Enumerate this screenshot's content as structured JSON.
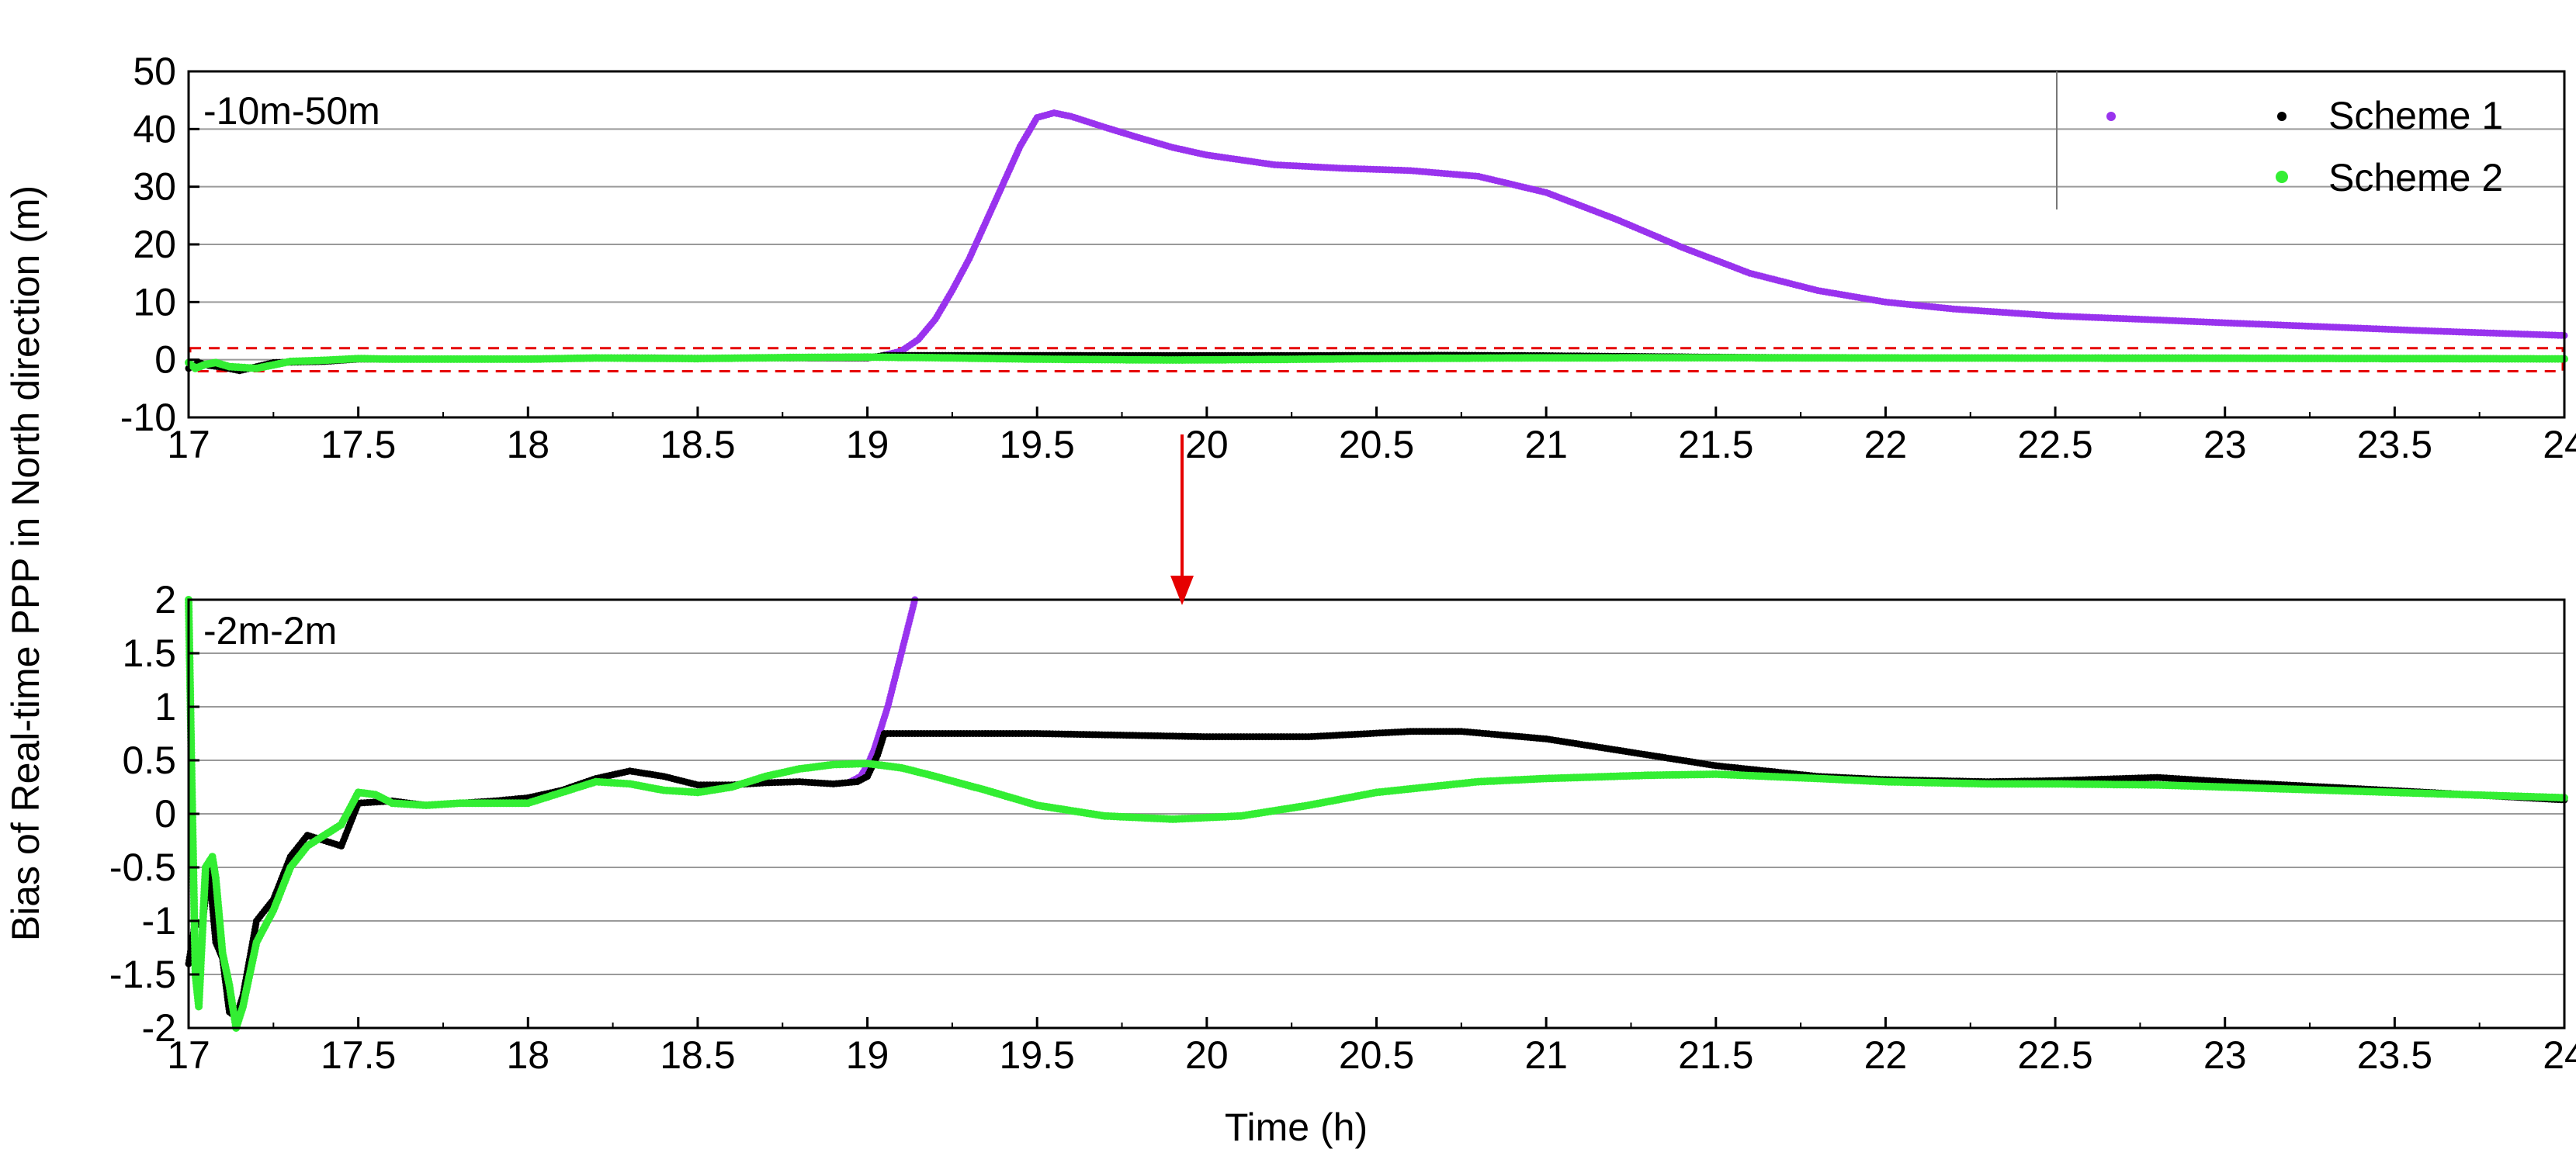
{
  "colors": {
    "scheme1": "#000000",
    "scheme2": "#33ee33",
    "scheme0": "#9933ee",
    "grid": "#9a9a9a",
    "box": "#e60000",
    "arrow": "#e60000"
  },
  "shared": {
    "ylabel": "Bias of Real-time PPP in North direction (m)",
    "xlabel": "Time (h)",
    "legend": [
      "Scheme 1",
      "Scheme 2"
    ],
    "legend_position": "top-right of upper panel"
  },
  "chart_data": [
    {
      "type": "scatter",
      "annotation": "-10m-50m",
      "xlim": [
        17,
        24
      ],
      "ylim": [
        -10,
        50
      ],
      "xticks": [
        17,
        17.5,
        18,
        18.5,
        19,
        19.5,
        20,
        20.5,
        21,
        21.5,
        22,
        22.5,
        23,
        23.5,
        24
      ],
      "yticks": [
        -10,
        0,
        10,
        20,
        30,
        40,
        50
      ],
      "grid": true,
      "zoom_box_y": [
        -2,
        2
      ],
      "series": [
        {
          "name": "",
          "color": "#9933ee",
          "x": [
            19.05,
            19.1,
            19.15,
            19.2,
            19.25,
            19.3,
            19.35,
            19.4,
            19.45,
            19.5,
            19.55,
            19.6,
            19.7,
            19.8,
            19.9,
            20.0,
            20.2,
            20.4,
            20.6,
            20.8,
            21.0,
            21.2,
            21.4,
            21.6,
            21.8,
            22.0,
            22.2,
            22.5,
            22.8,
            23.0,
            23.3,
            23.6,
            24.0
          ],
          "y": [
            0.8,
            1.5,
            3.5,
            7.0,
            12.0,
            17.5,
            24.0,
            30.5,
            37.0,
            42.0,
            42.8,
            42.2,
            40.3,
            38.5,
            36.8,
            35.5,
            33.8,
            33.2,
            32.8,
            31.8,
            29.0,
            24.5,
            19.5,
            15.0,
            12.0,
            10.0,
            8.8,
            7.6,
            6.9,
            6.4,
            5.7,
            5.0,
            4.2
          ]
        },
        {
          "name": "Scheme 1",
          "color": "#000000",
          "x": [
            17.0,
            17.03,
            17.06,
            17.1,
            17.15,
            17.25,
            17.4,
            17.5,
            17.6,
            17.8,
            18.0,
            18.3,
            18.5,
            18.8,
            19.0,
            19.05,
            19.5,
            20.0,
            20.5,
            20.7,
            21.0,
            21.5,
            22.0,
            22.5,
            22.8,
            23.0,
            23.5,
            24.0
          ],
          "y": [
            -1.5,
            -0.5,
            -1.0,
            -1.3,
            -1.9,
            -0.5,
            -0.3,
            0.1,
            0.1,
            0.1,
            0.15,
            0.35,
            0.25,
            0.3,
            0.3,
            0.75,
            0.75,
            0.72,
            0.75,
            0.78,
            0.7,
            0.45,
            0.3,
            0.3,
            0.33,
            0.3,
            0.2,
            0.12
          ]
        },
        {
          "name": "Scheme 2",
          "color": "#33ee33",
          "x": [
            17.0,
            17.02,
            17.05,
            17.08,
            17.12,
            17.2,
            17.3,
            17.4,
            17.5,
            17.6,
            17.8,
            18.0,
            18.2,
            18.5,
            18.8,
            19.0,
            19.2,
            19.5,
            19.9,
            20.2,
            20.5,
            21.0,
            21.5,
            22.0,
            22.5,
            23.0,
            23.5,
            24.0
          ],
          "y": [
            -0.5,
            -1.5,
            -0.8,
            -0.5,
            -1.2,
            -1.5,
            -0.3,
            -0.1,
            0.2,
            0.1,
            0.1,
            0.1,
            0.3,
            0.2,
            0.4,
            0.45,
            0.35,
            0.1,
            -0.05,
            0.05,
            0.2,
            0.33,
            0.35,
            0.3,
            0.28,
            0.25,
            0.2,
            0.14
          ]
        }
      ]
    },
    {
      "type": "scatter",
      "annotation": "-2m-2m",
      "xlim": [
        17,
        24
      ],
      "ylim": [
        -2,
        2
      ],
      "xticks": [
        17,
        17.5,
        18,
        18.5,
        19,
        19.5,
        20,
        20.5,
        21,
        21.5,
        22,
        22.5,
        23,
        23.5,
        24
      ],
      "yticks": [
        -2,
        -1.5,
        -1,
        -0.5,
        0,
        0.5,
        1,
        1.5,
        2
      ],
      "grid": true,
      "series": [
        {
          "name": "",
          "color": "#9933ee",
          "x": [
            18.95,
            18.98,
            19.0,
            19.02,
            19.04,
            19.06,
            19.08,
            19.1,
            19.12,
            19.14
          ],
          "y": [
            0.3,
            0.35,
            0.45,
            0.6,
            0.8,
            1.0,
            1.25,
            1.5,
            1.75,
            2.0
          ]
        },
        {
          "name": "Scheme 1",
          "color": "#000000",
          "x": [
            17.0,
            17.02,
            17.04,
            17.06,
            17.08,
            17.1,
            17.12,
            17.14,
            17.16,
            17.2,
            17.25,
            17.3,
            17.35,
            17.4,
            17.45,
            17.5,
            17.6,
            17.7,
            17.8,
            17.9,
            18.0,
            18.1,
            18.2,
            18.3,
            18.4,
            18.5,
            18.6,
            18.7,
            18.8,
            18.9,
            18.97,
            19.0,
            19.03,
            19.05,
            19.5,
            20.0,
            20.3,
            20.6,
            20.75,
            21.0,
            21.2,
            21.5,
            21.8,
            22.0,
            22.3,
            22.5,
            22.8,
            23.0,
            23.3,
            23.6,
            24.0
          ],
          "y": [
            -1.4,
            -1.0,
            -1.05,
            -0.5,
            -1.2,
            -1.35,
            -1.85,
            -1.9,
            -1.7,
            -1.0,
            -0.8,
            -0.4,
            -0.2,
            -0.25,
            -0.3,
            0.1,
            0.12,
            0.08,
            0.1,
            0.12,
            0.15,
            0.22,
            0.33,
            0.4,
            0.35,
            0.27,
            0.27,
            0.29,
            0.3,
            0.28,
            0.3,
            0.35,
            0.55,
            0.75,
            0.75,
            0.72,
            0.72,
            0.77,
            0.77,
            0.7,
            0.6,
            0.45,
            0.35,
            0.32,
            0.3,
            0.31,
            0.34,
            0.3,
            0.25,
            0.2,
            0.13
          ]
        },
        {
          "name": "Scheme 2",
          "color": "#33ee33",
          "x": [
            17.0,
            17.01,
            17.02,
            17.03,
            17.05,
            17.07,
            17.08,
            17.1,
            17.12,
            17.14,
            17.16,
            17.2,
            17.25,
            17.3,
            17.35,
            17.4,
            17.45,
            17.5,
            17.55,
            17.6,
            17.7,
            17.8,
            17.9,
            18.0,
            18.1,
            18.2,
            18.3,
            18.4,
            18.5,
            18.6,
            18.7,
            18.8,
            18.9,
            19.0,
            19.1,
            19.2,
            19.35,
            19.5,
            19.7,
            19.9,
            20.1,
            20.3,
            20.5,
            20.8,
            21.0,
            21.3,
            21.5,
            21.8,
            22.0,
            22.3,
            22.5,
            22.8,
            23.0,
            23.5,
            24.0
          ],
          "y": [
            2.0,
            0.2,
            -1.5,
            -1.8,
            -0.5,
            -0.4,
            -0.6,
            -1.3,
            -1.6,
            -2.0,
            -1.8,
            -1.2,
            -0.9,
            -0.5,
            -0.3,
            -0.2,
            -0.1,
            0.2,
            0.18,
            0.1,
            0.08,
            0.1,
            0.1,
            0.1,
            0.2,
            0.3,
            0.28,
            0.22,
            0.2,
            0.25,
            0.35,
            0.42,
            0.46,
            0.47,
            0.43,
            0.35,
            0.22,
            0.08,
            -0.02,
            -0.05,
            -0.02,
            0.08,
            0.2,
            0.3,
            0.33,
            0.36,
            0.37,
            0.33,
            0.3,
            0.28,
            0.28,
            0.27,
            0.25,
            0.2,
            0.15
          ]
        }
      ]
    }
  ]
}
